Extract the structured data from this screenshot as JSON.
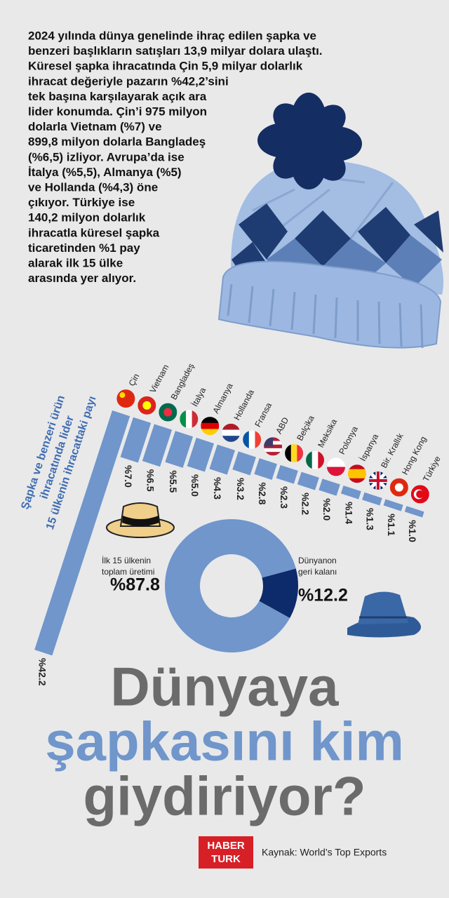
{
  "text": {
    "lines": [
      "2024 yılında dünya genelinde ihraç edilen şapka ve",
      "benzeri başlıkların satışları 13,9 milyar dolara ulaştı.",
      "Küresel şapka ihracatında Çin 5,9 milyar dolarlık",
      "ihracat değeriyle pazarın %42,2’sini",
      "tek başına karşılayarak açık ara",
      "lider konumda. Çin’i 975 milyon",
      "dolarla Vietnam (%7) ve",
      "899,8 milyon dolarla Bangladeş",
      "(%6,5) izliyor. Avrupa’da ise",
      "İtalya (%5,5), Almanya (%5)",
      "ve Hollanda (%4,3) öne",
      "çıkıyor. Türkiye ise",
      "140,2 milyon dolarlık",
      "ihracatla küresel şapka",
      "ticaretinden %1 pay",
      "alarak ilk 15 ülke",
      "arasında yer alıyor."
    ]
  },
  "chart_data": [
    {
      "type": "bar",
      "axis_label": [
        "Şapka ve benzeri ürün",
        "ihracatında lider",
        "15 ülkenin ihracattaki payı"
      ],
      "categories": [
        "Çin",
        "Vietnam",
        "Bangladeş",
        "İtalya",
        "Almanya",
        "Hollanda",
        "Fransa",
        "ABD",
        "Belçika",
        "Meksika",
        "Polonya",
        "İspanya",
        "Bir. Krallık",
        "Hong Kong",
        "Türkiye"
      ],
      "values": [
        42.2,
        7.0,
        6.5,
        5.5,
        5.0,
        4.3,
        3.2,
        2.8,
        2.3,
        2.2,
        2.0,
        1.4,
        1.3,
        1.1,
        1.0
      ],
      "value_labels": [
        "%42.2",
        "%7.0",
        "%6.5",
        "%5.5",
        "%5.0",
        "%4.3",
        "%3.2",
        "%2.8",
        "%2.3",
        "%2.2",
        "%2.0",
        "%1.4",
        "%1.3",
        "%1.1",
        "%1.0"
      ],
      "color": "#7096cb"
    },
    {
      "type": "pie",
      "labels": [
        [
          "İlk 15 ülkenin",
          "toplam üretimi"
        ],
        [
          "Dünyanon",
          "geri kalanı"
        ]
      ],
      "values": [
        87.8,
        12.2
      ],
      "value_labels": [
        "%87.8",
        "%12.2"
      ],
      "colors": [
        "#7096cb",
        "#0d2a6b"
      ]
    }
  ],
  "title": {
    "lines": [
      "Dünyaya",
      "şapkasını kim",
      "giydiriyor?"
    ]
  },
  "logo": {
    "lines": [
      "HABER",
      "TURK"
    ]
  },
  "source": "Kaynak: World’s Top Exports"
}
